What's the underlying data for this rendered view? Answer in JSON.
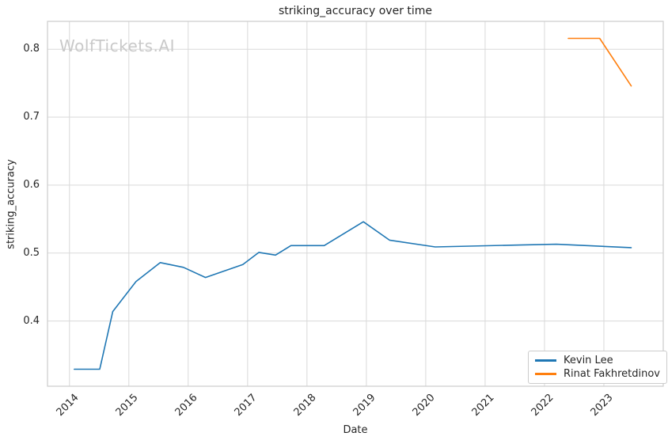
{
  "watermark": {
    "text": "WolfTickets.AI"
  },
  "chart_data": {
    "type": "line",
    "title": "striking_accuracy over time",
    "xlabel": "Date",
    "ylabel": "striking_accuracy",
    "x_ticks": [
      "2014",
      "2015",
      "2016",
      "2017",
      "2018",
      "2019",
      "2020",
      "2021",
      "2022",
      "2023"
    ],
    "x_tick_values": [
      2014,
      2015,
      2016,
      2017,
      2018,
      2019,
      2020,
      2021,
      2022,
      2023
    ],
    "y_ticks": [
      "0.4",
      "0.5",
      "0.6",
      "0.7",
      "0.8"
    ],
    "y_tick_values": [
      0.4,
      0.5,
      0.6,
      0.7,
      0.8
    ],
    "xlim": [
      2013.63,
      2024.0
    ],
    "ylim": [
      0.304,
      0.841
    ],
    "grid": true,
    "grid_color": "#d9d9d9",
    "spine_color": "#cccccc",
    "legend_position": "lower right",
    "series": [
      {
        "name": "Kevin Lee",
        "color": "#1f77b4",
        "x": [
          2014.08,
          2014.51,
          2014.73,
          2015.12,
          2015.53,
          2015.92,
          2016.29,
          2016.92,
          2017.19,
          2017.47,
          2017.73,
          2018.29,
          2018.95,
          2019.39,
          2020.16,
          2021.65,
          2022.2,
          2023.46
        ],
        "y": [
          0.329,
          0.329,
          0.414,
          0.458,
          0.486,
          0.479,
          0.464,
          0.483,
          0.501,
          0.497,
          0.511,
          0.511,
          0.546,
          0.519,
          0.509,
          0.512,
          0.513,
          0.508
        ]
      },
      {
        "name": "Rinat Fakhretdinov",
        "color": "#ff7f0e",
        "x": [
          2022.4,
          2022.93,
          2023.46
        ],
        "y": [
          0.816,
          0.816,
          0.746
        ]
      }
    ]
  }
}
